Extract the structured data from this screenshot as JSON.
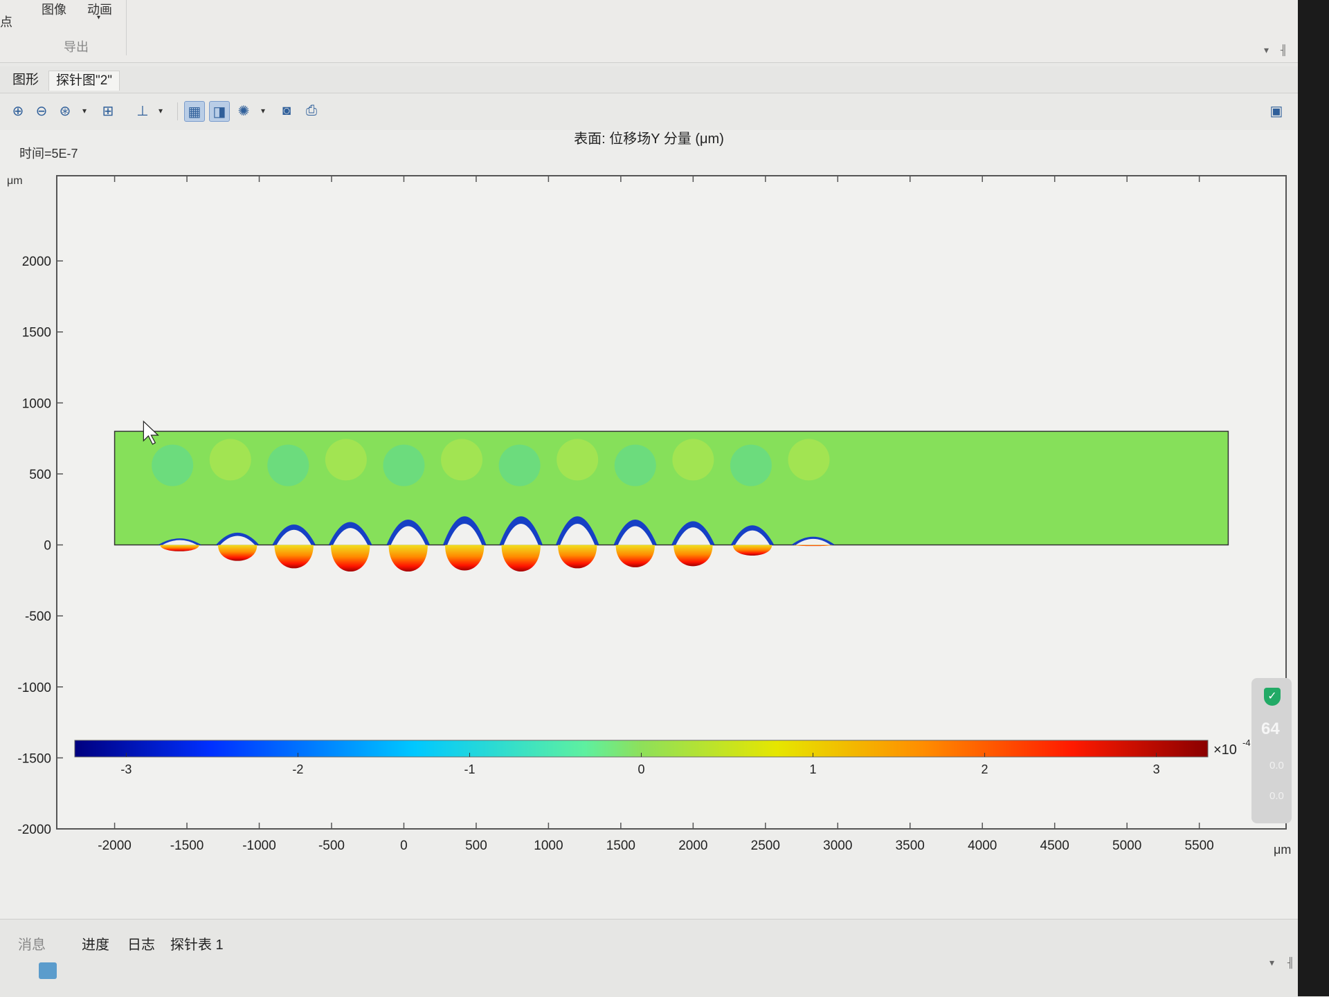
{
  "ribbon": {
    "image_label": "图像",
    "animation_label": "动画",
    "export_label": "导出",
    "left_fragment": "点"
  },
  "tabs": [
    {
      "label": "图形"
    },
    {
      "label": "探针图\"2\""
    }
  ],
  "plot": {
    "time_label": "时间=5E-7",
    "title": "表面: 位移场Y 分量 (μm)",
    "y_unit": "μm",
    "x_unit": "μm",
    "colorbar_multiplier": "×10",
    "colorbar_exponent": "-4"
  },
  "chart_data": {
    "type": "heatmap",
    "title": "表面: 位移场Y 分量 (μm)",
    "xlabel": "μm",
    "ylabel": "μm",
    "xlim": [
      -2400,
      6100
    ],
    "ylim": [
      -2000,
      2600
    ],
    "x_ticks": [
      "-2000",
      "-1500",
      "-1000",
      "-500",
      "0",
      "500",
      "1000",
      "1500",
      "2000",
      "2500",
      "3000",
      "3500",
      "4000",
      "4500",
      "5000",
      "5500"
    ],
    "y_ticks": [
      "2000",
      "1500",
      "1000",
      "500",
      "0",
      "-500",
      "-1000",
      "-1500",
      "-2000"
    ],
    "domain": {
      "x": [
        -2000,
        5700
      ],
      "y": [
        0,
        800
      ]
    },
    "colorbar": {
      "min": -3.3,
      "max": 3.3,
      "ticks": [
        "-3",
        "-2",
        "-1",
        "0",
        "1",
        "2",
        "3"
      ],
      "scale_label": "×10⁻⁴"
    },
    "surface_wave": {
      "crest_x": [
        -1550,
        -1150,
        -760,
        -370,
        30,
        420,
        810,
        1200,
        1600,
        2000,
        2410,
        2830
      ],
      "trough_depth": [
        -60,
        -150,
        -220,
        -250,
        -250,
        -240,
        -250,
        -220,
        -210,
        -200,
        -100,
        -10
      ],
      "peak_height": [
        80,
        150,
        250,
        280,
        310,
        350,
        350,
        350,
        310,
        290,
        240,
        100
      ]
    },
    "grid": false
  },
  "bottom": {
    "tabs": [
      {
        "label": "消息"
      },
      {
        "label": "进度"
      },
      {
        "label": "日志"
      },
      {
        "label": "探针表 1"
      }
    ]
  },
  "widget": {
    "value": "64",
    "row1": "0.0",
    "row2": "0.0"
  }
}
